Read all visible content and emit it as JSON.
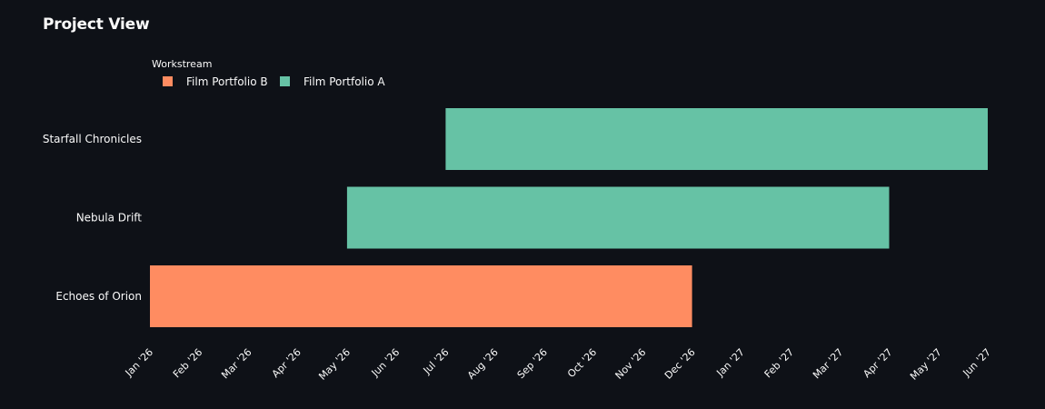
{
  "page": {
    "title": "Project View"
  },
  "chart_data": {
    "type": "gantt",
    "legend": {
      "title": "Workstream",
      "placement": "top-left",
      "entries": [
        {
          "name": "Film Portfolio B",
          "color": "#ff8c61"
        },
        {
          "name": "Film Portfolio A",
          "color": "#66c2a5"
        }
      ]
    },
    "categories": [
      "Starfall Chronicles",
      "Nebula Drift",
      "Echoes of Orion"
    ],
    "tasks": [
      {
        "name": "Starfall Chronicles",
        "workstream": "Film Portfolio A",
        "start": "2026-07-01",
        "end": "2027-06-01"
      },
      {
        "name": "Nebula Drift",
        "workstream": "Film Portfolio A",
        "start": "2026-05-01",
        "end": "2027-04-01"
      },
      {
        "name": "Echoes of Orion",
        "workstream": "Film Portfolio B",
        "start": "2026-01-01",
        "end": "2026-12-01"
      }
    ],
    "x_ticks": [
      "Jan '26",
      "Feb '26",
      "Mar '26",
      "Apr '26",
      "May '26",
      "Jun '26",
      "Jul '26",
      "Aug '26",
      "Sep '26",
      "Oct '26",
      "Nov '26",
      "Dec '26",
      "Jan '27",
      "Feb '27",
      "Mar '27",
      "Apr '27",
      "May '27",
      "Jun '27"
    ],
    "xlim": [
      "2026-01-01",
      "2027-06-01"
    ],
    "grid": false
  }
}
